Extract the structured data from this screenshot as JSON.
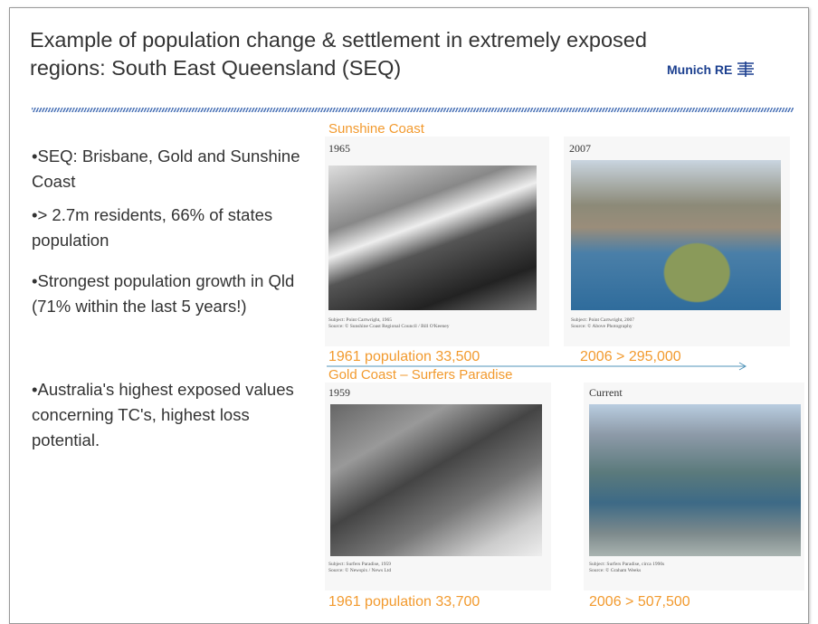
{
  "header": {
    "title": "Example of population change & settlement in extremely exposed regions: South East Queensland (SEQ)",
    "logo": "Munich RE"
  },
  "bullets": [
    "•SEQ: Brisbane, Gold and Sunshine Coast",
    "•> 2.7m residents, 66% of states population",
    "•Strongest population growth in Qld (71% within the last 5 years!)",
    "•Australia's highest exposed values concerning TC's, highest loss potential."
  ],
  "sections": [
    {
      "title": "Sunshine Coast",
      "photos": [
        {
          "year": "1965",
          "subject": "Subject: Point Cartwright, 1965",
          "source": "Source: © Sunshine Coast Regional Council / Bill O'Keeney"
        },
        {
          "year": "2007",
          "subject": "Subject: Point Cartwright, 2007",
          "source": "Source: © Above Photography"
        }
      ],
      "population": [
        "1961 population 33,500",
        "2006 > 295,000"
      ]
    },
    {
      "title": "Gold Coast – Surfers Paradise",
      "photos": [
        {
          "year": "1959",
          "subject": "Subject: Surfers Paradise, 1959",
          "source": "Source: © Newspix / News Ltd"
        },
        {
          "year": "Current",
          "subject": "Subject: Surfers Paradise, circa 1990s",
          "source": "Source: © Graham Weeks"
        }
      ],
      "population": [
        "1961 population 33,700",
        "2006 > 507,500"
      ]
    }
  ]
}
